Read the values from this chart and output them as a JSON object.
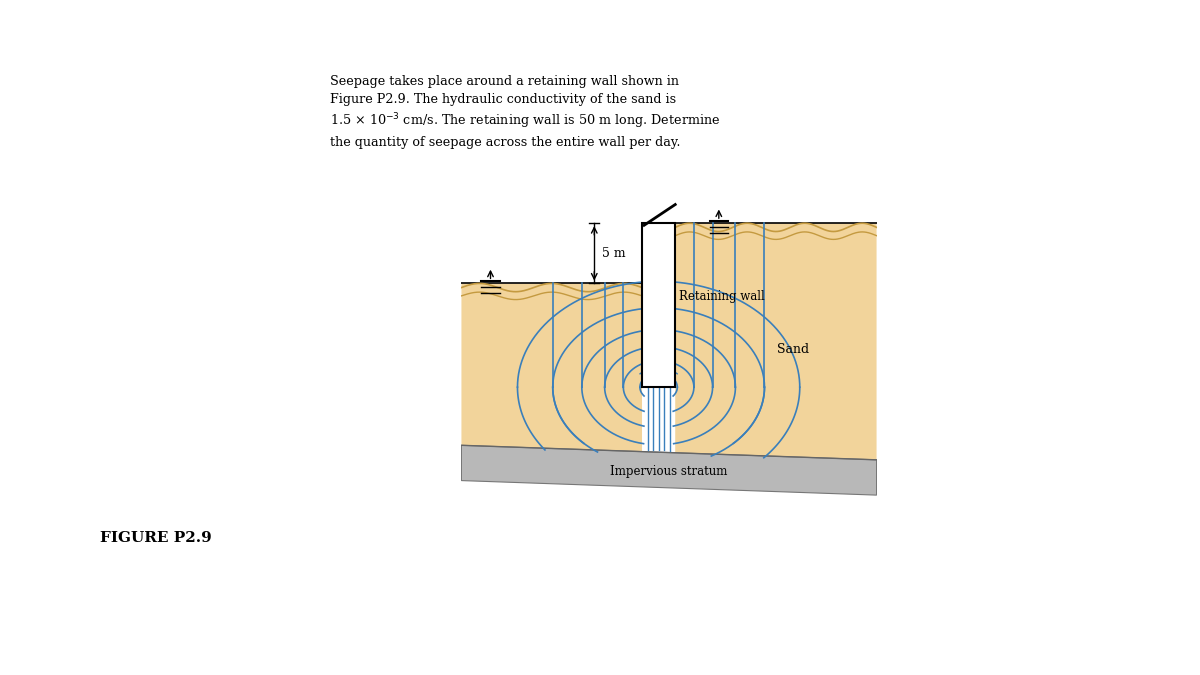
{
  "background_color": "#ffffff",
  "fig_width": 12.0,
  "fig_height": 6.75,
  "figure_label": "FIGURE P2.9",
  "retaining_wall_label": "Retaining wall",
  "sand_label": "Sand",
  "impervious_label": "Impervious stratum",
  "dim_label": "5 m",
  "sand_color": "#f2d49b",
  "wall_color": "#ffffff",
  "wall_edge_color": "#000000",
  "flow_line_color": "#3a7fbb",
  "impervious_color": "#b8b8b8",
  "impervious_top_color": "#999999",
  "text_color": "#000000",
  "problem_text_line1": "Seepage takes place around a retaining wall shown in",
  "problem_text_line2": "Figure P2.9. The hydraulic conductivity of the sand is",
  "problem_text_line3": "1.5 × 10⁻³ cm/s. The retaining wall is 50 m long. Determine",
  "problem_text_line4": "the quantity of seepage across the entire wall per day."
}
